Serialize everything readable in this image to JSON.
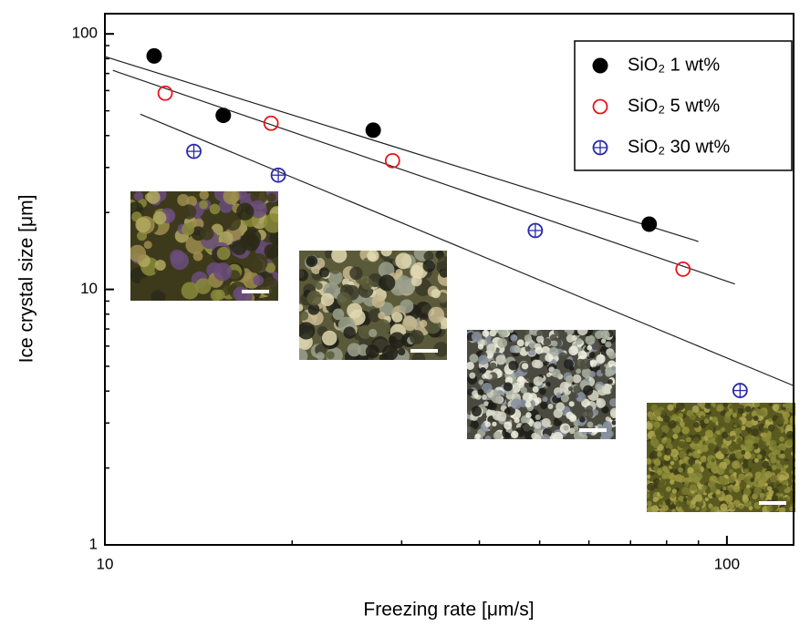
{
  "chart_data": {
    "type": "scatter",
    "x_label": "Freezing rate [μm/s]",
    "y_label": "Ice crystal size [μm]",
    "xscale": "log",
    "yscale": "log",
    "xlim": [
      10,
      128
    ],
    "ylim": [
      1,
      120
    ],
    "xticks": [
      10,
      100
    ],
    "yticks": [
      1,
      10,
      100
    ],
    "legend": "upper right",
    "series": [
      {
        "name": "SiO₂ 1 wt%",
        "color": "#000000",
        "marker": "filled-circle",
        "x": [
          12.0,
          15.5,
          27.0,
          75.0
        ],
        "values": [
          82,
          48,
          42,
          18
        ],
        "fit": {
          "x": [
            10,
            90
          ],
          "y": [
            81.5,
            15.4
          ]
        }
      },
      {
        "name": "SiO₂ 5 wt%",
        "color": "#e8141b",
        "marker": "open-circle",
        "x": [
          12.5,
          18.5,
          29.0,
          85.0
        ],
        "values": [
          58.6,
          44.7,
          31.9,
          12.0
        ],
        "fit": {
          "x": [
            10.3,
            103
          ],
          "y": [
            72,
            10.5
          ]
        }
      },
      {
        "name": "SiO₂ 30 wt%",
        "color": "#2a2aa8",
        "marker": "crossed-circle",
        "x": [
          13.9,
          19.0,
          49.2,
          105
        ],
        "values": [
          34.7,
          28.0,
          17.0,
          4.02
        ],
        "fit": {
          "x": [
            11.4,
            128
          ],
          "y": [
            48.5,
            4.2
          ]
        }
      }
    ]
  }
}
